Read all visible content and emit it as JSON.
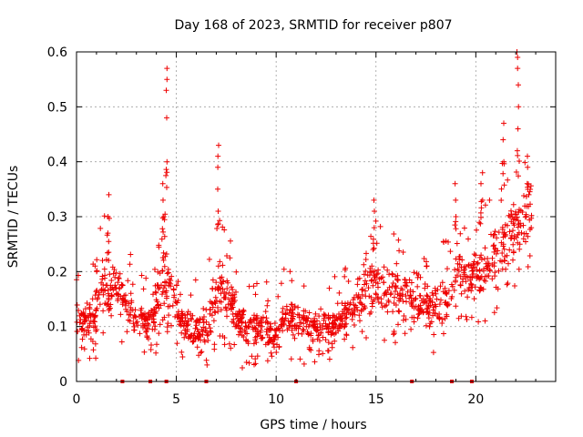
{
  "chart_data": {
    "type": "scatter",
    "title": "Day 168 of 2023, SRMTID for receiver p807",
    "xlabel": "GPS time / hours",
    "ylabel": "SRMTID / TECUs",
    "xlim": [
      0,
      24
    ],
    "ylim": [
      0,
      0.6
    ],
    "xticks": [
      0,
      5,
      10,
      15,
      20
    ],
    "yticks": [
      0,
      0.1,
      0.2,
      0.3,
      0.4,
      0.5,
      0.6
    ],
    "grid": true,
    "marker": "+",
    "color": "#ee0000",
    "envelope": [
      {
        "x": 0.0,
        "lo": 0.07,
        "hi": 0.15
      },
      {
        "x": 0.5,
        "lo": 0.07,
        "hi": 0.15
      },
      {
        "x": 1.0,
        "lo": 0.08,
        "hi": 0.17
      },
      {
        "x": 1.3,
        "lo": 0.12,
        "hi": 0.25
      },
      {
        "x": 1.6,
        "lo": 0.1,
        "hi": 0.24
      },
      {
        "x": 2.0,
        "lo": 0.12,
        "hi": 0.22
      },
      {
        "x": 2.5,
        "lo": 0.1,
        "hi": 0.2
      },
      {
        "x": 3.0,
        "lo": 0.08,
        "hi": 0.15
      },
      {
        "x": 3.5,
        "lo": 0.07,
        "hi": 0.14
      },
      {
        "x": 4.0,
        "lo": 0.09,
        "hi": 0.18
      },
      {
        "x": 4.4,
        "lo": 0.13,
        "hi": 0.27
      },
      {
        "x": 4.8,
        "lo": 0.12,
        "hi": 0.22
      },
      {
        "x": 5.3,
        "lo": 0.07,
        "hi": 0.15
      },
      {
        "x": 5.8,
        "lo": 0.05,
        "hi": 0.13
      },
      {
        "x": 6.3,
        "lo": 0.03,
        "hi": 0.13
      },
      {
        "x": 6.8,
        "lo": 0.08,
        "hi": 0.2
      },
      {
        "x": 7.2,
        "lo": 0.1,
        "hi": 0.24
      },
      {
        "x": 7.7,
        "lo": 0.1,
        "hi": 0.2
      },
      {
        "x": 8.2,
        "lo": 0.06,
        "hi": 0.15
      },
      {
        "x": 9.0,
        "lo": 0.06,
        "hi": 0.13
      },
      {
        "x": 10.0,
        "lo": 0.05,
        "hi": 0.12
      },
      {
        "x": 10.6,
        "lo": 0.08,
        "hi": 0.16
      },
      {
        "x": 11.5,
        "lo": 0.07,
        "hi": 0.13
      },
      {
        "x": 12.5,
        "lo": 0.07,
        "hi": 0.13
      },
      {
        "x": 13.5,
        "lo": 0.08,
        "hi": 0.15
      },
      {
        "x": 14.2,
        "lo": 0.1,
        "hi": 0.2
      },
      {
        "x": 14.8,
        "lo": 0.12,
        "hi": 0.24
      },
      {
        "x": 15.5,
        "lo": 0.11,
        "hi": 0.22
      },
      {
        "x": 16.2,
        "lo": 0.1,
        "hi": 0.22
      },
      {
        "x": 17.0,
        "lo": 0.1,
        "hi": 0.21
      },
      {
        "x": 17.8,
        "lo": 0.08,
        "hi": 0.18
      },
      {
        "x": 18.5,
        "lo": 0.1,
        "hi": 0.2
      },
      {
        "x": 19.2,
        "lo": 0.14,
        "hi": 0.24
      },
      {
        "x": 19.8,
        "lo": 0.14,
        "hi": 0.24
      },
      {
        "x": 20.5,
        "lo": 0.15,
        "hi": 0.27
      },
      {
        "x": 21.2,
        "lo": 0.17,
        "hi": 0.3
      },
      {
        "x": 21.8,
        "lo": 0.2,
        "hi": 0.33
      },
      {
        "x": 22.3,
        "lo": 0.23,
        "hi": 0.36
      },
      {
        "x": 22.8,
        "lo": 0.24,
        "hi": 0.38
      }
    ],
    "spikes": [
      {
        "x": 1.6,
        "y": [
          0.27,
          0.3,
          0.34
        ]
      },
      {
        "x": 4.35,
        "y": [
          0.3,
          0.33,
          0.36
        ]
      },
      {
        "x": 4.5,
        "y": [
          0.4,
          0.48,
          0.53,
          0.55,
          0.57
        ]
      },
      {
        "x": 7.1,
        "y": [
          0.31,
          0.35,
          0.39,
          0.41,
          0.43
        ]
      },
      {
        "x": 14.9,
        "y": [
          0.28,
          0.31,
          0.33
        ]
      },
      {
        "x": 19.0,
        "y": [
          0.3,
          0.33,
          0.36
        ]
      },
      {
        "x": 20.3,
        "y": [
          0.33,
          0.36,
          0.38
        ]
      },
      {
        "x": 21.4,
        "y": [
          0.4,
          0.44,
          0.47
        ]
      },
      {
        "x": 22.1,
        "y": [
          0.42,
          0.46,
          0.5,
          0.54,
          0.57,
          0.59,
          0.6
        ]
      },
      {
        "x": 22.6,
        "y": [
          0.36,
          0.39,
          0.41
        ]
      }
    ],
    "baseline_x": [
      2.3,
      3.7,
      4.5,
      6.5,
      11.0,
      16.8,
      18.8,
      19.8
    ]
  }
}
